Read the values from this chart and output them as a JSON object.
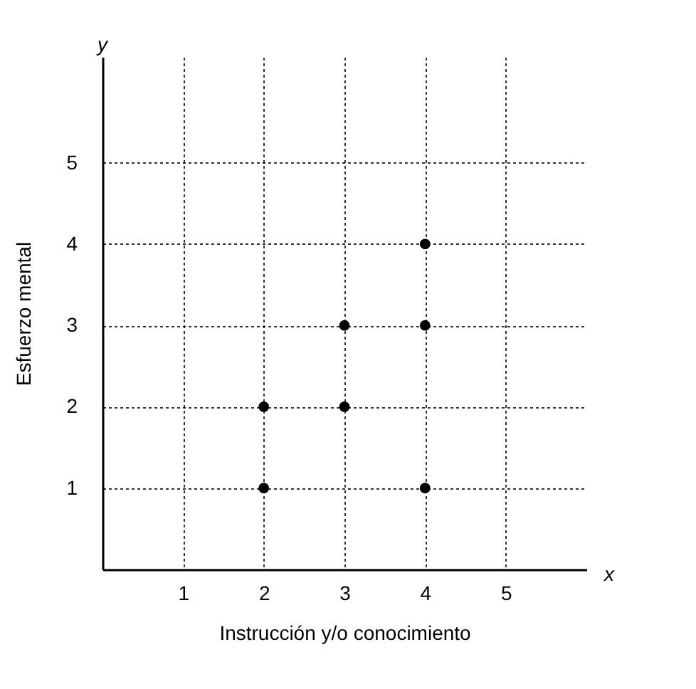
{
  "chart_data": {
    "type": "scatter",
    "xlabel": "Instrucción y/o conocimiento",
    "ylabel": "Esfuerzo mental",
    "annotations": [
      "y",
      "x"
    ],
    "x": [
      2,
      2,
      3,
      3,
      4,
      4,
      4
    ],
    "series": [
      {
        "color": "#000000",
        "values": [
          1,
          2,
          2,
          3,
          3,
          4,
          1
        ]
      }
    ],
    "xlim": [
      0,
      6
    ],
    "ylim": [
      0,
      6.3
    ],
    "xticks": [
      1,
      2,
      3,
      4,
      5
    ],
    "yticks": [
      1,
      2,
      3,
      4,
      5
    ],
    "grid": true,
    "marker": "circle",
    "line_style": "dotted"
  }
}
